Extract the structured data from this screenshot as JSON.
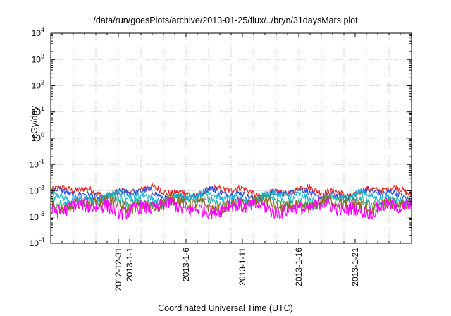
{
  "chart_data": {
    "type": "line",
    "title": "/data/run/goesPlots/archive/2013-01-25/flux/../bryn/31daysMars.plot",
    "xlabel": "Coordinated Universal Time (UTC)",
    "ylabel": "cGy/day",
    "yscale": "log",
    "ylim": [
      0.0001,
      10000
    ],
    "yticks": [
      {
        "value": 0.0001,
        "base": "10",
        "exp": "-4"
      },
      {
        "value": 0.001,
        "base": "10",
        "exp": "-3"
      },
      {
        "value": 0.01,
        "base": "10",
        "exp": "-2"
      },
      {
        "value": 0.1,
        "base": "10",
        "exp": "-1"
      },
      {
        "value": 1,
        "base": "10",
        "exp": "0"
      },
      {
        "value": 10,
        "base": "10",
        "exp": "1"
      },
      {
        "value": 100,
        "base": "10",
        "exp": "2"
      },
      {
        "value": 1000,
        "base": "10",
        "exp": "3"
      },
      {
        "value": 10000,
        "base": "10",
        "exp": "4"
      }
    ],
    "xlim": [
      "2012-12-25",
      "2013-01-26"
    ],
    "xticks": [
      "2012-12-31",
      "2013-1-1",
      "2013-1-6",
      "2013-1-11",
      "2013-1-16",
      "2013-1-21"
    ],
    "xtick_dates": [
      "2012-12-31",
      "2013-01-01",
      "2013-01-06",
      "2013-01-11",
      "2013-01-16",
      "2013-01-21"
    ],
    "grid": true,
    "series": [
      {
        "color": "#e8201e",
        "level": 0.0095,
        "noise": 0.25
      },
      {
        "color": "#2a4fe0",
        "level": 0.0075,
        "noise": 0.25
      },
      {
        "color": "#18b7d8",
        "level": 0.0058,
        "noise": 0.28
      },
      {
        "color": "#1fb39a",
        "level": 0.004,
        "noise": 0.35
      },
      {
        "color": "#8c6a1e",
        "level": 0.003,
        "noise": 0.45
      },
      {
        "color": "#ff00ff",
        "level": 0.0022,
        "noise": 0.55
      }
    ]
  }
}
